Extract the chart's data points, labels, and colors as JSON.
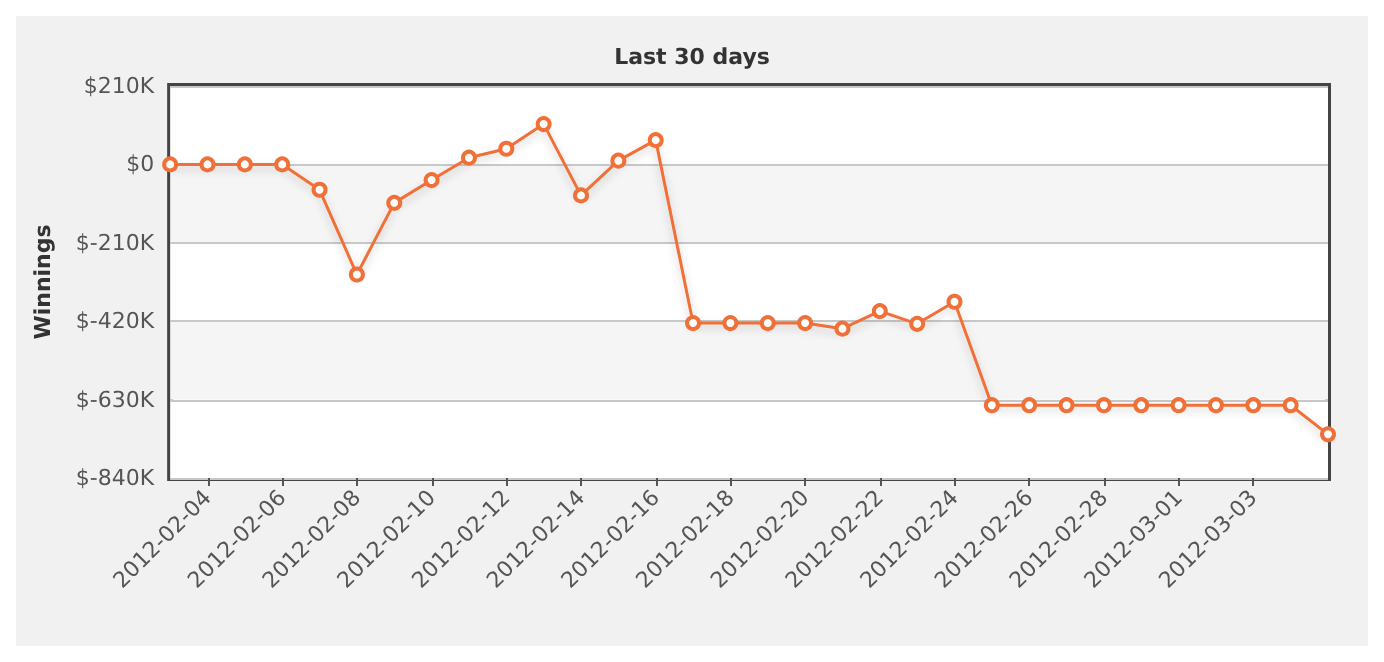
{
  "chart_data": {
    "type": "line",
    "title": "Last 30 days",
    "ylabel": "Winnings",
    "x": [
      "2012-02-03",
      "2012-02-04",
      "2012-02-05",
      "2012-02-06",
      "2012-02-07",
      "2012-02-08",
      "2012-02-09",
      "2012-02-10",
      "2012-02-11",
      "2012-02-12",
      "2012-02-13",
      "2012-02-14",
      "2012-02-15",
      "2012-02-16",
      "2012-02-17",
      "2012-02-18",
      "2012-02-19",
      "2012-02-20",
      "2012-02-21",
      "2012-02-22",
      "2012-02-23",
      "2012-02-24",
      "2012-02-25",
      "2012-02-26",
      "2012-02-27",
      "2012-02-28",
      "2012-02-29",
      "2012-03-01",
      "2012-03-02",
      "2012-03-03",
      "2012-03-04",
      "2012-03-05"
    ],
    "series": [
      {
        "color": "#f07038",
        "values": [
          0,
          0,
          0,
          0,
          -68,
          -295,
          -103,
          -42,
          18,
          42,
          108,
          -83,
          10,
          65,
          -425,
          -425,
          -425,
          -425,
          -440,
          -393,
          -427,
          -368,
          -645,
          -645,
          -645,
          -645,
          -645,
          -645,
          -645,
          -645,
          -645,
          -723
        ]
      }
    ],
    "xlim": [
      "2012-02-03",
      "2012-03-05"
    ],
    "xticks": [
      "2012-02-04",
      "2012-02-06",
      "2012-02-08",
      "2012-02-10",
      "2012-02-12",
      "2012-02-14",
      "2012-02-16",
      "2012-02-18",
      "2012-02-20",
      "2012-02-22",
      "2012-02-24",
      "2012-02-26",
      "2012-02-28",
      "2012-03-01",
      "2012-03-03"
    ],
    "ylim": [
      -840,
      210
    ],
    "yticks": [
      {
        "value": -840,
        "label": "$-840K"
      },
      {
        "value": -630,
        "label": "$-630K"
      },
      {
        "value": -420,
        "label": "$-420K"
      },
      {
        "value": -210,
        "label": "$-210K"
      },
      {
        "value": 0,
        "label": "$0"
      },
      {
        "value": 210,
        "label": "$210K"
      }
    ],
    "grid": "y",
    "marker": "circle",
    "line_style": "solid"
  }
}
